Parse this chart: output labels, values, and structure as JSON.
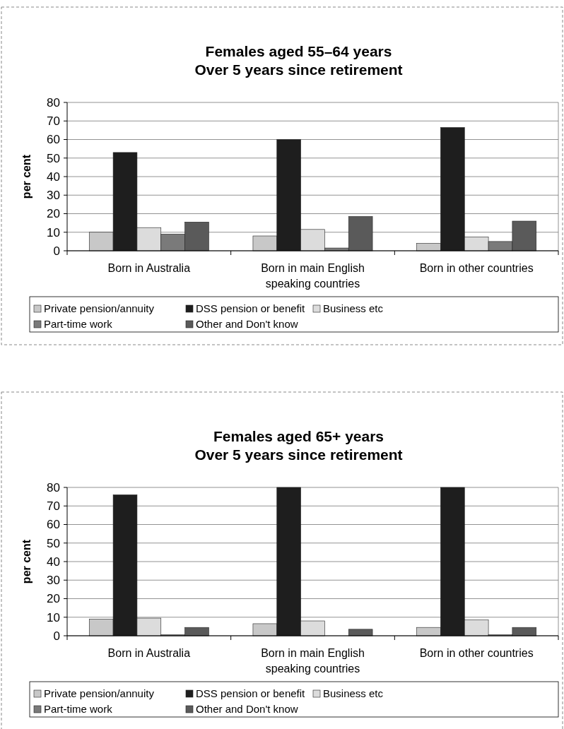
{
  "chart_data": [
    {
      "type": "bar",
      "title": "Females aged 55–64 years\nOver 5 years since retirement",
      "ylabel": "per cent",
      "categories": [
        "Born in Australia",
        "Born in main English speaking countries",
        "Born in other countries"
      ],
      "ylim": [
        0,
        80
      ],
      "yticks": [
        0,
        10,
        20,
        30,
        40,
        50,
        60,
        70,
        80
      ],
      "grid": "y",
      "legend": "bottom",
      "series": [
        {
          "name": "Private pension/annuity",
          "color": "#c8c8c8",
          "values": [
            10,
            8,
            4
          ]
        },
        {
          "name": "DSS pension or benefit",
          "color": "#1e1e1e",
          "values": [
            53,
            60,
            66.5
          ]
        },
        {
          "name": "Business etc",
          "color": "#dcdcdc",
          "values": [
            12.5,
            11.5,
            7.5
          ]
        },
        {
          "name": "Part-time work",
          "color": "#7a7a7a",
          "values": [
            9,
            1.5,
            5
          ]
        },
        {
          "name": "Other and Don't know",
          "color": "#5a5a5a",
          "values": [
            15.5,
            18.5,
            16
          ]
        }
      ]
    },
    {
      "type": "bar",
      "title": "Females aged 65+ years\nOver 5 years since retirement",
      "ylabel": "per cent",
      "categories": [
        "Born in Australia",
        "Born in main English speaking countries",
        "Born in other countries"
      ],
      "ylim": [
        0,
        80
      ],
      "yticks": [
        0,
        10,
        20,
        30,
        40,
        50,
        60,
        70,
        80
      ],
      "grid": "y",
      "legend": "bottom",
      "series": [
        {
          "name": "Private pension/annuity",
          "color": "#c8c8c8",
          "values": [
            9,
            6.5,
            4.5
          ]
        },
        {
          "name": "DSS pension or benefit",
          "color": "#1e1e1e",
          "values": [
            76,
            80,
            80
          ]
        },
        {
          "name": "Business etc",
          "color": "#dcdcdc",
          "values": [
            9.5,
            8,
            8.5
          ]
        },
        {
          "name": "Part-time work",
          "color": "#7a7a7a",
          "values": [
            0.5,
            0,
            0.5
          ]
        },
        {
          "name": "Other and Don't know",
          "color": "#5a5a5a",
          "values": [
            4.5,
            3.5,
            4.5
          ]
        }
      ]
    }
  ]
}
